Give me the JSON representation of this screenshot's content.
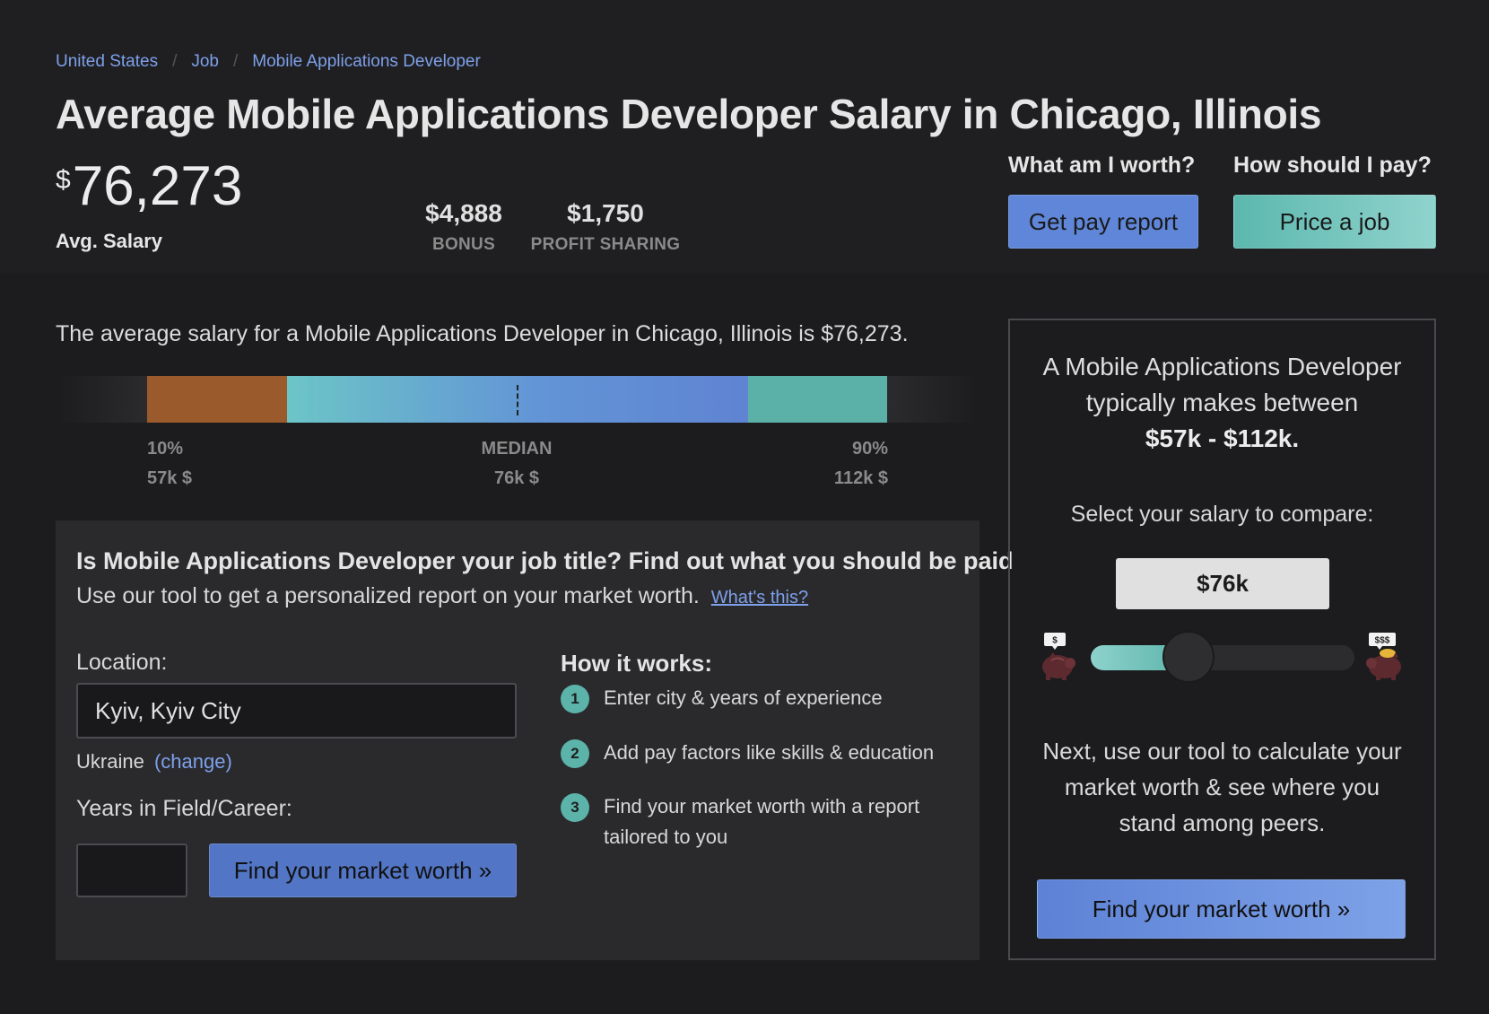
{
  "breadcrumb": [
    {
      "label": "United States"
    },
    {
      "label": "Job"
    },
    {
      "label": "Mobile Applications Developer"
    }
  ],
  "header": {
    "title": "Average Mobile Applications Developer Salary in Chicago, Illinois",
    "currency_symbol": "$",
    "avg_salary": "76,273",
    "avg_label": "Avg. Salary",
    "bonus_value": "$4,888",
    "bonus_label": "BONUS",
    "profit_value": "$1,750",
    "profit_label": "PROFIT SHARING",
    "worth_question": "What am I worth?",
    "pay_question": "How should I pay?",
    "report_button": "Get pay report",
    "price_button": "Price a job"
  },
  "main": {
    "intro": "The average salary for a Mobile Applications Developer in Chicago, Illinois is $76,273.",
    "distribution": {
      "p10_label": "10%",
      "p10_value": "57k $",
      "median_label": "MEDIAN",
      "median_value": "76k $",
      "p90_label": "90%",
      "p90_value": "112k $"
    }
  },
  "tool": {
    "title": "Is Mobile Applications Developer your job title? Find out what you should be paid",
    "subtitle": "Use our tool to get a personalized report on your market worth.",
    "whats_this": "What's this?",
    "location_label": "Location:",
    "location_value": "Kyiv, Kyiv City",
    "country": "Ukraine",
    "change_link": "(change)",
    "years_label": "Years in Field/Career:",
    "years_value": "",
    "find_button": "Find your market worth »",
    "how_title": "How it works:",
    "steps": [
      {
        "num": "1",
        "text": "Enter city & years of experience"
      },
      {
        "num": "2",
        "text": "Add pay factors like skills & education"
      },
      {
        "num": "3",
        "text": "Find your market worth with a report tailored to you"
      }
    ]
  },
  "side": {
    "intro": "A Mobile Applications Developer typically makes between",
    "range": "$57k - $112k.",
    "select_label": "Select your salary to compare:",
    "selected_salary": "$76k",
    "slider_level": 0.37,
    "pig_low_tag": "$",
    "pig_high_tag": "$$$",
    "next_text": "Next, use our tool to calculate your market worth & see where you stand among peers.",
    "find_button": "Find your market worth »"
  },
  "colors": {
    "accent_blue": "#5f86d8",
    "accent_teal": "#5cb4aa",
    "bar_low": "#9b5a2c",
    "link": "#7ea0ea"
  },
  "icons": {
    "pig_low": "piggy-bank-icon",
    "pig_high": "piggy-bank-full-icon"
  }
}
